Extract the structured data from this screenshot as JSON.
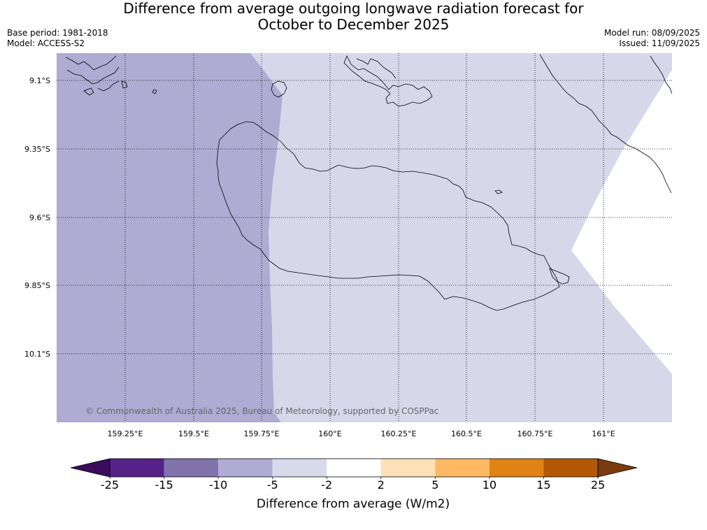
{
  "title": {
    "line1": "Difference from average outgoing longwave radiation forecast for",
    "line2": "October to December 2025"
  },
  "meta": {
    "base_period": "Base period: 1981-2018",
    "model": "Model: ACCESS-S2",
    "model_run": "Model run: 08/09/2025",
    "issued": "Issued: 11/09/2025"
  },
  "map": {
    "lat_labels": [
      "9.1°S",
      "9.35°S",
      "9.6°S",
      "9.85°S",
      "10.1°S"
    ],
    "lon_labels": [
      "159.25°E",
      "159.5°E",
      "159.75°E",
      "160°E",
      "160.25°E",
      "160.5°E",
      "160.75°E",
      "161°E"
    ],
    "copyright": "© Commonwealth of Australia 2025, Bureau of Meteorology, supported by COSPPac",
    "region_colors": {
      "minus10_to_minus5": "#b0abd3",
      "minus5_to_minus2": "#d7d7ea",
      "minus2_to_2": "#ffffff"
    }
  },
  "colorbar": {
    "label": "Difference from average (W/m2)",
    "ticks": [
      "-25",
      "-15",
      "-10",
      "-5",
      "-2",
      "2",
      "5",
      "10",
      "15",
      "25"
    ],
    "under_color": "#3a0c5b",
    "over_color": "#7b3b0e",
    "bins": [
      {
        "color": "#552288"
      },
      {
        "color": "#8073ac"
      },
      {
        "color": "#b0abd3"
      },
      {
        "color": "#d8daeb"
      },
      {
        "color": "#ffffff"
      },
      {
        "color": "#fee0b6"
      },
      {
        "color": "#fdb863"
      },
      {
        "color": "#e08214"
      },
      {
        "color": "#b35806"
      }
    ]
  }
}
